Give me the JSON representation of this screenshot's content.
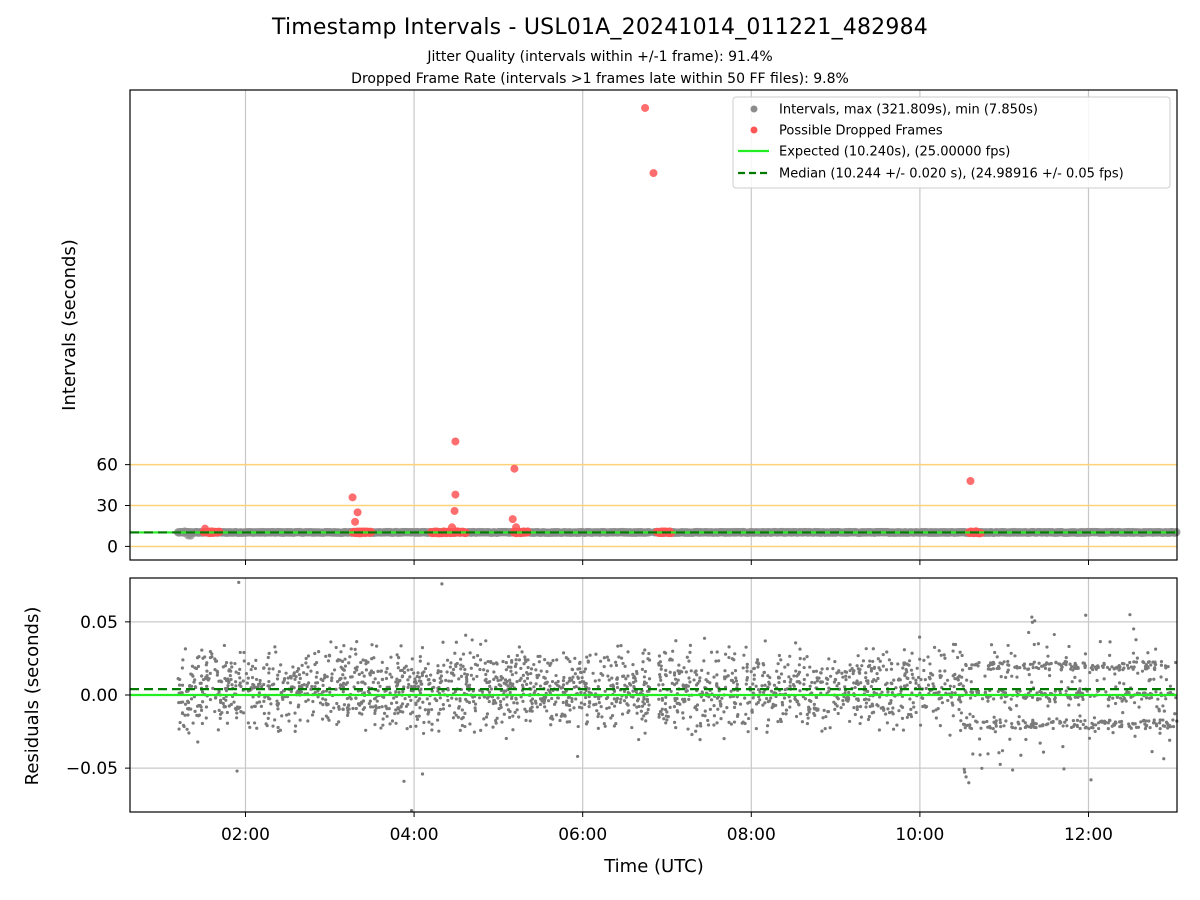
{
  "header": {
    "title": "Timestamp Intervals - USL01A_20241014_011221_482984",
    "subtitle_jitter": "Jitter Quality (intervals within +/-1 frame): 91.4%",
    "subtitle_dropped": "Dropped Frame Rate (intervals >1 frames late within 50 FF files): 9.8%"
  },
  "colors": {
    "intervals": "#8c8c8c",
    "dropped": "#ff5555",
    "expected": "#22ee22",
    "median": "#007a00",
    "guide_lines": "#ffd27a",
    "grid": "#c8c8c8",
    "residuals": "#7a7a7a"
  },
  "chart_data": [
    {
      "type": "scatter",
      "name": "intervals",
      "title": "",
      "xlabel": "",
      "ylabel": "Intervals (seconds)",
      "x_ticks": [
        "02:00",
        "04:00",
        "06:00",
        "08:00",
        "10:00",
        "12:00"
      ],
      "x_tick_hours": [
        2,
        4,
        6,
        8,
        10,
        12
      ],
      "xlim_hours": [
        0.63,
        13.05
      ],
      "y_ticks": [
        0,
        30,
        60
      ],
      "ylim": [
        -10,
        335
      ],
      "horizontal_guides": [
        -0.1,
        30,
        60
      ],
      "grid": true,
      "legend_position": "top-right",
      "legend": [
        "Intervals, max (321.809s), min (7.850s)",
        "Possible Dropped Frames",
        "Expected (10.240s), (25.00000 fps)",
        "Median (10.244 +/- 0.020 s), (24.98916 +/- 0.05 fps)"
      ],
      "series": [
        {
          "name": "Intervals, max (321.809s), min (7.850s)",
          "ranges_hours": [
            [
              1.2,
              6.8
            ],
            [
              6.85,
              13.05
            ]
          ],
          "baseline_value": 10.24,
          "max": 321.809,
          "min": 7.85
        },
        {
          "name": "Possible Dropped Frames",
          "clusters": [
            {
              "x_hours": [
                1.5,
                1.7
              ],
              "y": 10.3
            },
            {
              "x_hours": [
                3.27,
                3.5
              ],
              "y": 10.3
            },
            {
              "x_hours": [
                4.2,
                4.62
              ],
              "y": 10.3
            },
            {
              "x_hours": [
                5.18,
                5.35
              ],
              "y": 10.3
            },
            {
              "x_hours": [
                6.88,
                7.05
              ],
              "y": 10.3
            },
            {
              "x_hours": [
                10.58,
                10.73
              ],
              "y": 10.3
            }
          ],
          "points": [
            {
              "x": 1.52,
              "y": 13
            },
            {
              "x": 3.27,
              "y": 36
            },
            {
              "x": 3.3,
              "y": 18
            },
            {
              "x": 3.33,
              "y": 25
            },
            {
              "x": 4.45,
              "y": 14
            },
            {
              "x": 4.48,
              "y": 26
            },
            {
              "x": 4.49,
              "y": 38
            },
            {
              "x": 4.49,
              "y": 77
            },
            {
              "x": 5.17,
              "y": 20
            },
            {
              "x": 5.19,
              "y": 57
            },
            {
              "x": 5.21,
              "y": 14
            },
            {
              "x": 6.74,
              "y": 321.8
            },
            {
              "x": 6.84,
              "y": 274
            },
            {
              "x": 10.6,
              "y": 48
            }
          ]
        },
        {
          "name": "Expected (10.240s), (25.00000 fps)",
          "value": 10.24
        },
        {
          "name": "Median (10.244 +/- 0.020 s), (24.98916 +/- 0.05 fps)",
          "value": 10.244
        }
      ]
    },
    {
      "type": "scatter",
      "name": "residuals",
      "title": "",
      "xlabel": "Time (UTC)",
      "ylabel": "Residuals (seconds)",
      "x_ticks": [
        "02:00",
        "04:00",
        "06:00",
        "08:00",
        "10:00",
        "12:00"
      ],
      "x_tick_hours": [
        2,
        4,
        6,
        8,
        10,
        12
      ],
      "xlim_hours": [
        0.63,
        13.05
      ],
      "y_ticks": [
        "0.05",
        "0.00",
        "−0.05"
      ],
      "y_tick_values": [
        0.05,
        0.0,
        -0.05
      ],
      "ylim": [
        -0.08,
        0.08
      ],
      "grid": true,
      "expected_line": 0.0,
      "median_line": 0.004,
      "series": [
        {
          "name": "residuals",
          "x_range_hours": [
            1.2,
            13.05
          ],
          "gap_hours": [
            6.8,
            6.9
          ],
          "approx_points": 2600,
          "spread": 0.04,
          "extremes": [
            {
              "x": 1.92,
              "y": 0.077
            },
            {
              "x": 4.33,
              "y": 0.076
            },
            {
              "x": 3.97,
              "y": -0.079
            },
            {
              "x": 1.9,
              "y": -0.052
            },
            {
              "x": 3.88,
              "y": -0.059
            },
            {
              "x": 4.1,
              "y": -0.054
            },
            {
              "x": 10.58,
              "y": -0.06
            },
            {
              "x": 12.03,
              "y": -0.058
            },
            {
              "x": 5.94,
              "y": -0.042
            }
          ]
        }
      ]
    }
  ]
}
